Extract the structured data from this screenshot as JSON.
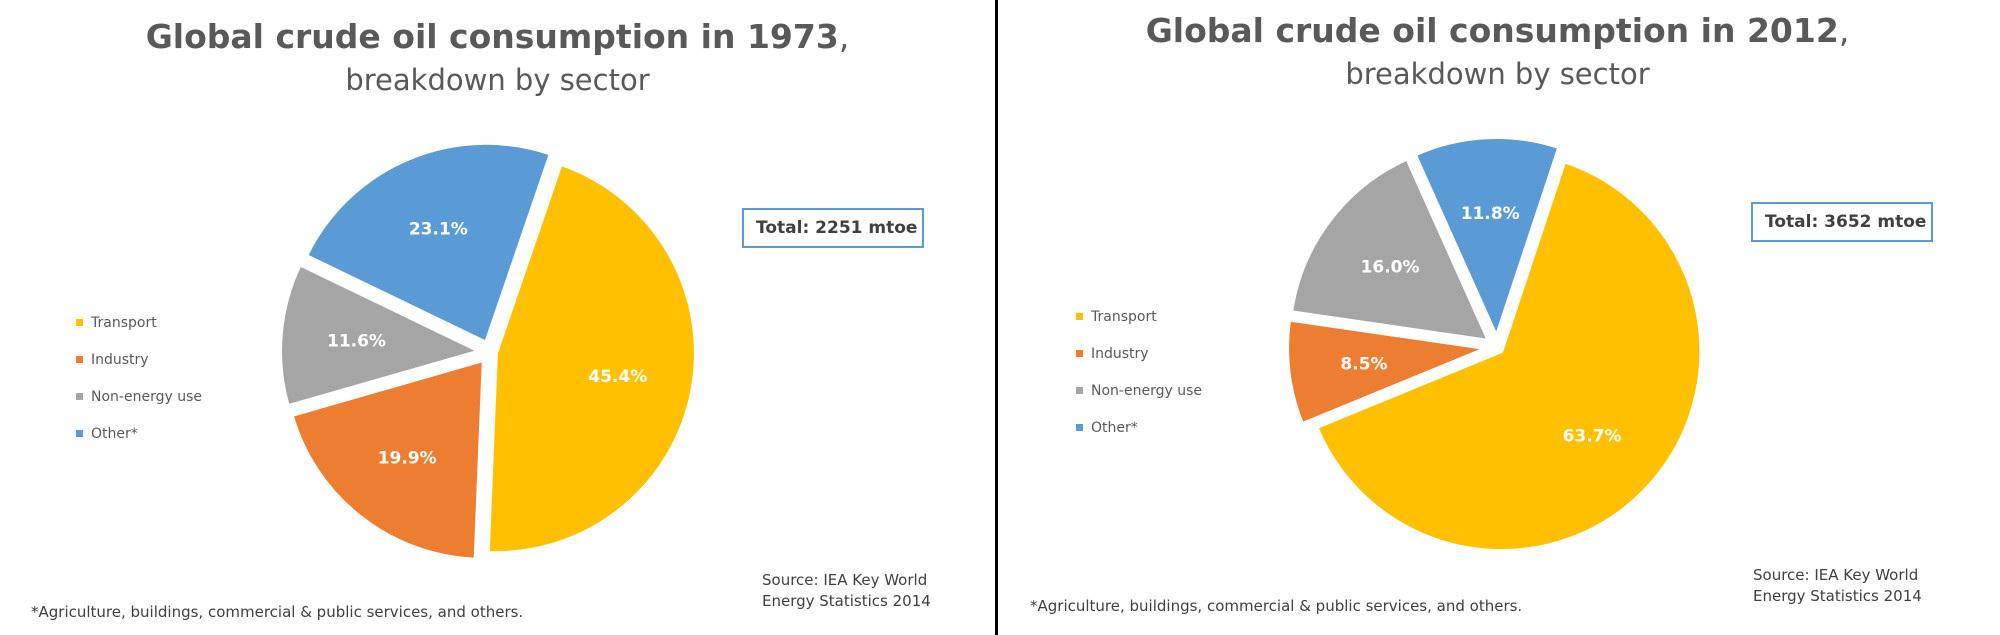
{
  "chart_data": [
    {
      "type": "pie",
      "title": "Global crude oil consumption in 1973",
      "title_suffix": ",",
      "subtitle": "breakdown by sector",
      "total": "Total: 2251 mtoe",
      "categories": [
        "Transport",
        "Industry",
        "Non-energy use",
        "Other*"
      ],
      "values": [
        45.4,
        19.9,
        11.6,
        23.1
      ],
      "labels": [
        "45.4%",
        "19.9%",
        "11.6%",
        "23.1%"
      ],
      "colors": [
        "#ffc000",
        "#ed7d31",
        "#a5a5a5",
        "#5b9bd5"
      ],
      "legend_position": "left",
      "source_line1": "Source: IEA Key World",
      "source_line2": "Energy Statistics 2014",
      "footnote": "*Agriculture, buildings, commercial & public services, and others."
    },
    {
      "type": "pie",
      "title": "Global crude oil consumption in 2012",
      "title_suffix": ",",
      "subtitle": "breakdown by sector",
      "total": "Total: 3652 mtoe",
      "categories": [
        "Transport",
        "Industry",
        "Non-energy use",
        "Other*"
      ],
      "values": [
        63.7,
        8.5,
        16.0,
        11.8
      ],
      "labels": [
        "63.7%",
        "8.5%",
        "16.0%",
        "11.8%"
      ],
      "colors": [
        "#ffc000",
        "#ed7d31",
        "#a5a5a5",
        "#5b9bd5"
      ],
      "legend_position": "left",
      "source_line1": "Source: IEA Key World",
      "source_line2": "Energy Statistics 2014",
      "footnote": "*Agriculture, buildings, commercial & public services, and others."
    }
  ]
}
